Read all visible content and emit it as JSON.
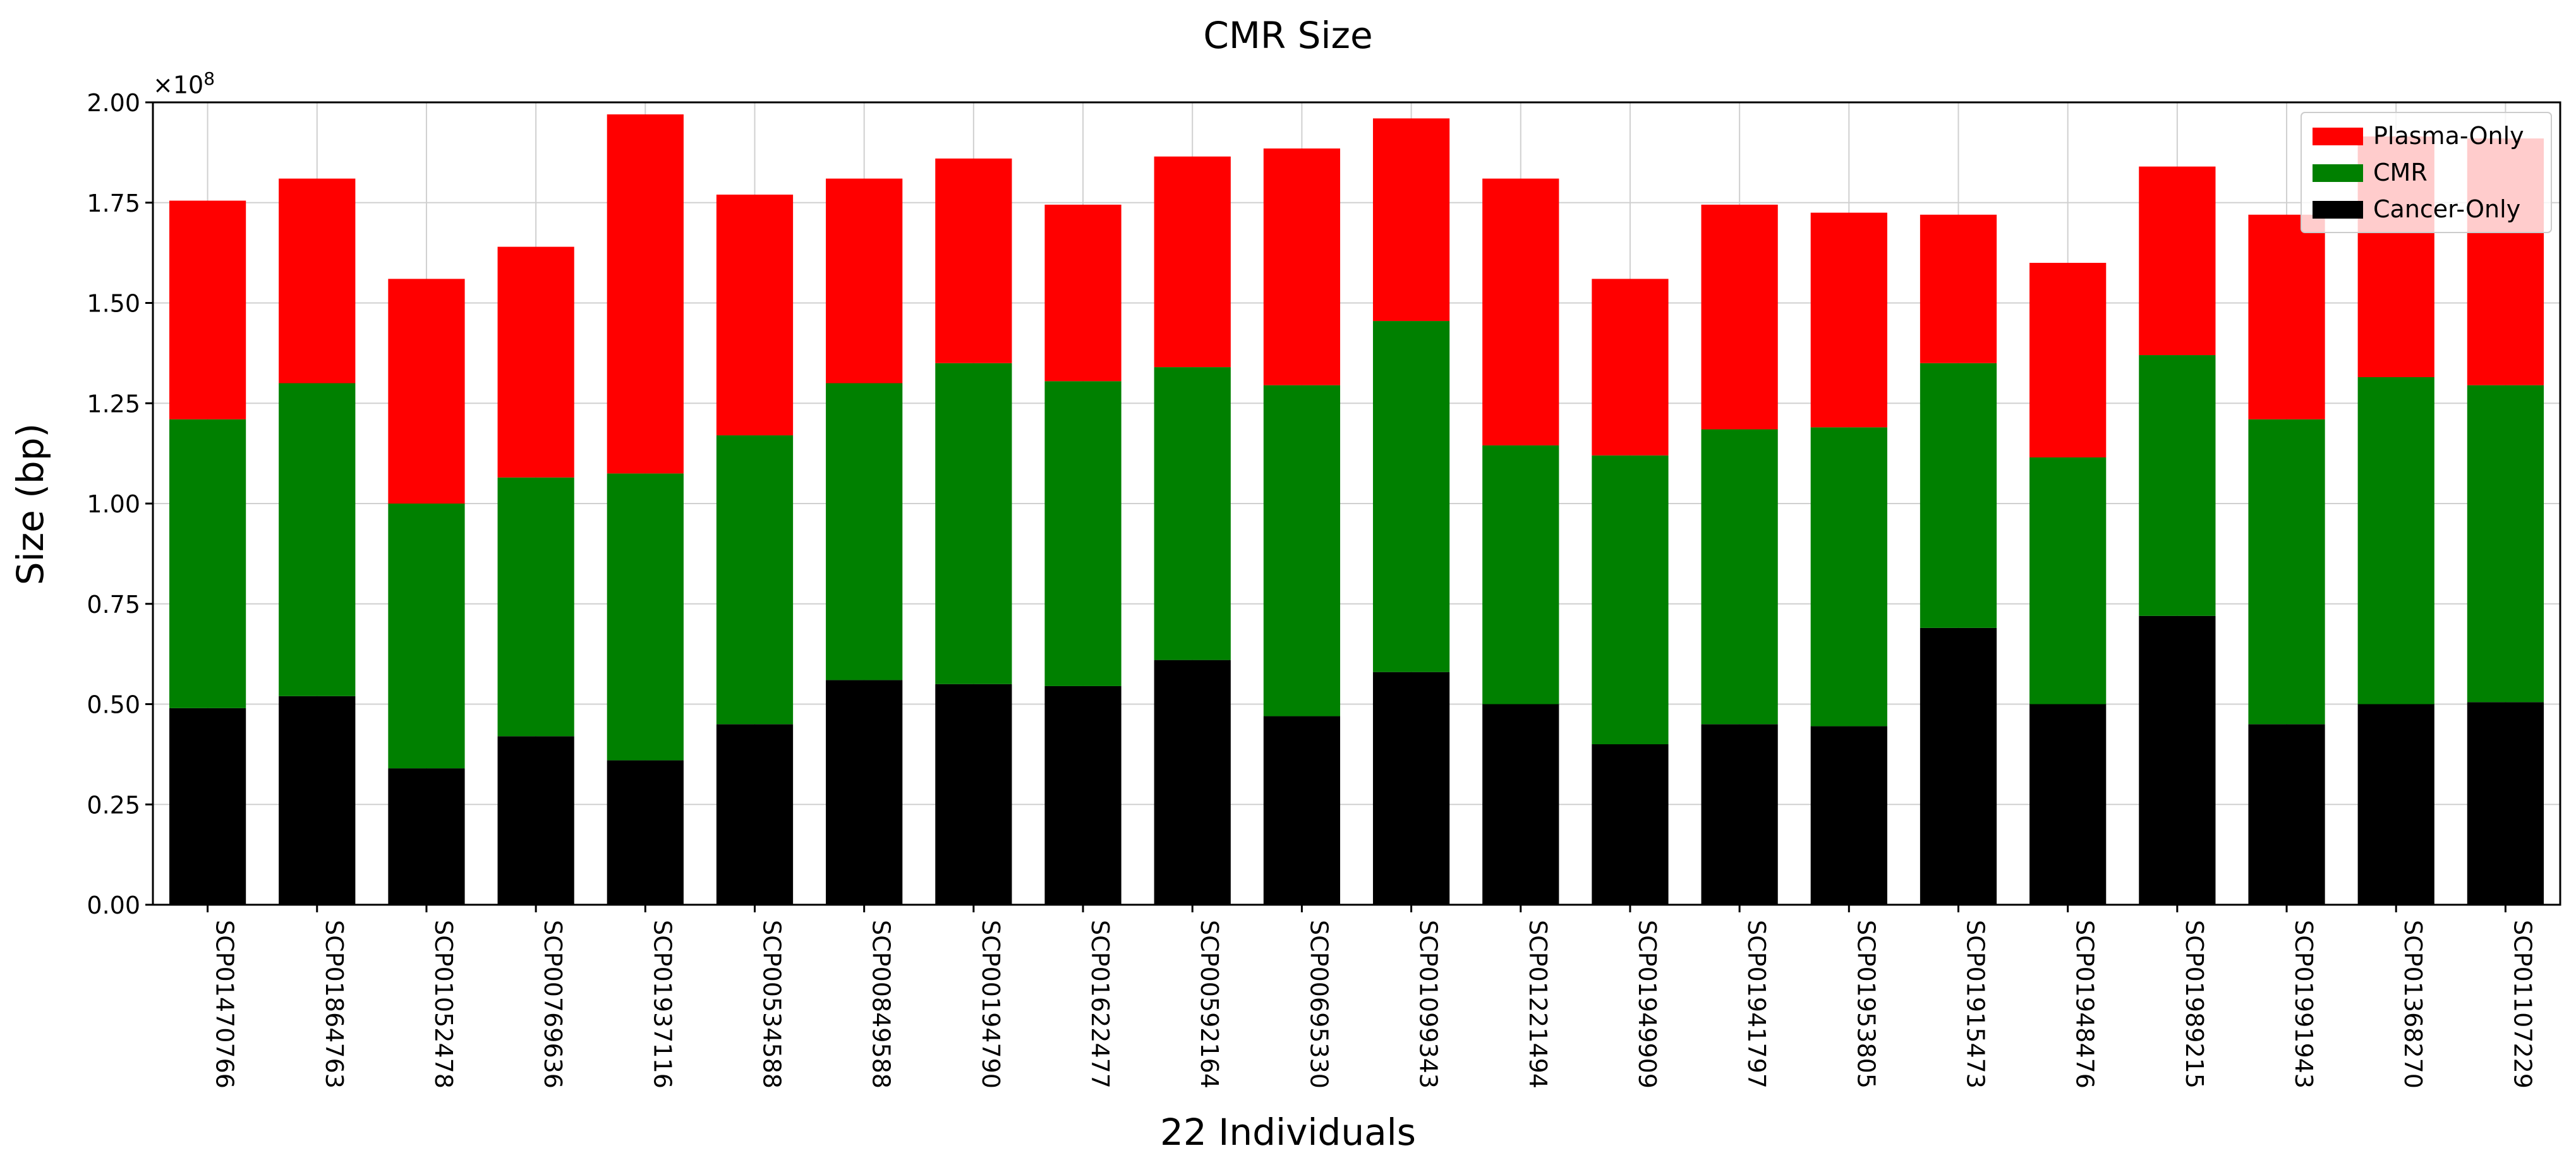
{
  "chart_data": {
    "type": "bar",
    "stacked": true,
    "title": "CMR Size",
    "xlabel": "22 Individuals",
    "ylabel": "Size (bp)",
    "y_multiplier": {
      "base": "×10",
      "exponent": "8"
    },
    "ylim": [
      0,
      2.0
    ],
    "yticks": [
      "0.00",
      "0.25",
      "0.50",
      "0.75",
      "1.00",
      "1.25",
      "1.50",
      "1.75",
      "2.00"
    ],
    "grid": true,
    "legend_position": "top-right",
    "categories": [
      "SCP01470766",
      "SCP01864763",
      "SCP01052478",
      "SCP00769636",
      "SCP01937116",
      "SCP00534588",
      "SCP00849588",
      "SCP00194790",
      "SCP01622477",
      "SCP00592164",
      "SCP00695330",
      "SCP01099343",
      "SCP01221494",
      "SCP01949909",
      "SCP01941797",
      "SCP01953805",
      "SCP01915473",
      "SCP01948476",
      "SCP01989215",
      "SCP01991943",
      "SCP01368270",
      "SCP01107229"
    ],
    "series": [
      {
        "name": "Cancer-Only",
        "color": "#000000",
        "values": [
          0.49,
          0.52,
          0.34,
          0.42,
          0.36,
          0.45,
          0.56,
          0.55,
          0.545,
          0.61,
          0.47,
          0.58,
          0.5,
          0.4,
          0.45,
          0.445,
          0.69,
          0.5,
          0.72,
          0.45,
          0.5,
          0.505
        ]
      },
      {
        "name": "CMR",
        "color": "#008000",
        "values": [
          0.72,
          0.78,
          0.66,
          0.645,
          0.715,
          0.72,
          0.74,
          0.8,
          0.76,
          0.73,
          0.825,
          0.875,
          0.645,
          0.72,
          0.735,
          0.745,
          0.66,
          0.615,
          0.65,
          0.76,
          0.815,
          0.79
        ]
      },
      {
        "name": "Plasma-Only",
        "color": "#ff0000",
        "values": [
          0.545,
          0.51,
          0.56,
          0.575,
          0.895,
          0.6,
          0.51,
          0.51,
          0.44,
          0.525,
          0.59,
          0.505,
          0.665,
          0.44,
          0.56,
          0.535,
          0.37,
          0.485,
          0.47,
          0.51,
          0.6,
          0.615
        ]
      }
    ],
    "legend": [
      {
        "name": "Plasma-Only",
        "color": "#ff0000"
      },
      {
        "name": "CMR",
        "color": "#008000"
      },
      {
        "name": "Cancer-Only",
        "color": "#000000"
      }
    ]
  }
}
